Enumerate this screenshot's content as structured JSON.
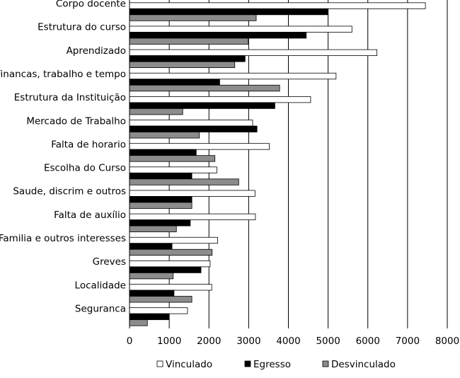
{
  "chart_data": {
    "type": "bar",
    "orientation": "horizontal",
    "categories": [
      "Corpo docente",
      "Estrutura do curso",
      "Aprendizado",
      "Financas, trabalho e tempo",
      "Estrutura da Instituição",
      "Mercado de Trabalho",
      "Falta de horario",
      "Escolha do Curso",
      "Saude, discrim e outros",
      "Falta de auxílio",
      "Familia e outros interesses",
      "Greves",
      "Localidade",
      "Seguranca"
    ],
    "series": [
      {
        "name": "Vinculado",
        "color": "#ffffff",
        "values": [
          7450,
          5600,
          6230,
          5200,
          4560,
          3100,
          3520,
          2200,
          3160,
          3170,
          2220,
          2030,
          2070,
          1460
        ]
      },
      {
        "name": "Egresso",
        "color": "#000000",
        "values": [
          5000,
          4450,
          2910,
          2270,
          3660,
          3210,
          1680,
          1570,
          1570,
          1530,
          1070,
          1800,
          1120,
          1000
        ]
      },
      {
        "name": "Desvinculado",
        "color": "#8c8c8c",
        "values": [
          3190,
          2990,
          2650,
          3780,
          1340,
          1760,
          2150,
          2750,
          1570,
          1180,
          2080,
          1100,
          1570,
          450
        ]
      }
    ],
    "xlim": [
      0,
      8000
    ],
    "xticks": [
      "0",
      "1000",
      "2000",
      "3000",
      "4000",
      "5000",
      "6000",
      "7000",
      "8000"
    ],
    "grid": "vertical",
    "legend_position": "bottom",
    "legend": [
      "Vinculado",
      "Egresso",
      "Desvinculado"
    ]
  }
}
